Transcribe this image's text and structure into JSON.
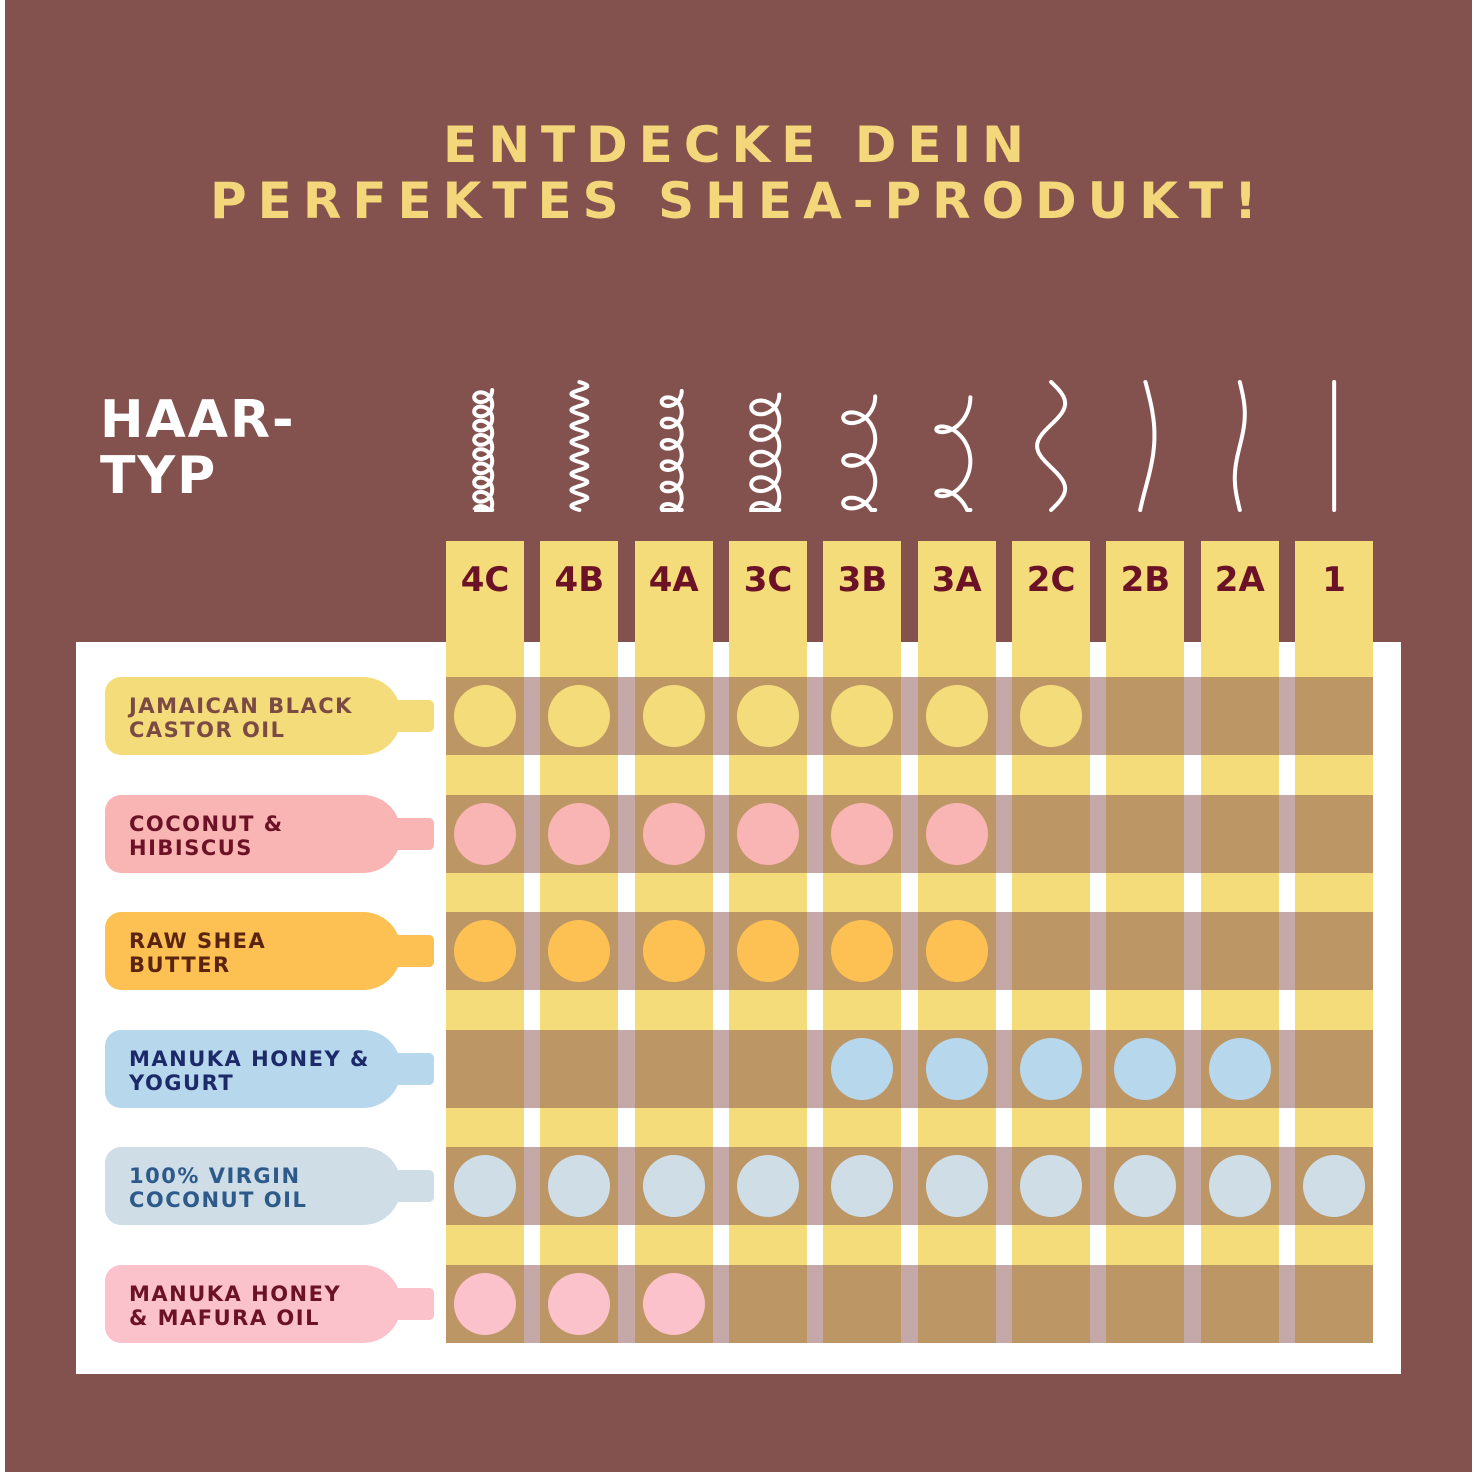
{
  "title": {
    "line1": "ENTDECKE DEIN",
    "line2": "PERFEKTES SHEA-PRODUKT!"
  },
  "hair_label": {
    "line1": "HAAR-",
    "line2": "TYP"
  },
  "colors": {
    "background": "#84524e",
    "title": "#f3d77a",
    "column": "#f5dc7a",
    "band": "#bc9664"
  },
  "hair_types": [
    {
      "label": "4C",
      "icon": "tight-coil-icon"
    },
    {
      "label": "4B",
      "icon": "zigzag-coil-icon"
    },
    {
      "label": "4A",
      "icon": "coil-icon"
    },
    {
      "label": "3C",
      "icon": "corkscrew-curl-icon"
    },
    {
      "label": "3B",
      "icon": "curl-icon"
    },
    {
      "label": "3A",
      "icon": "loose-curl-icon"
    },
    {
      "label": "2C",
      "icon": "strong-wave-icon"
    },
    {
      "label": "2B",
      "icon": "wave-icon"
    },
    {
      "label": "2A",
      "icon": "light-wave-icon"
    },
    {
      "label": "1",
      "icon": "straight-hair-icon"
    }
  ],
  "products": [
    {
      "name": "JAMAICAN BLACK\nCASTOR OIL",
      "color": "#f5dc7a",
      "text_color": "#7a4b44",
      "suitable": [
        "4C",
        "4B",
        "4A",
        "3C",
        "3B",
        "3A",
        "2C"
      ]
    },
    {
      "name": "COCONUT &\nHIBISCUS",
      "color": "#f9b4b4",
      "text_color": "#6b1226",
      "suitable": [
        "4C",
        "4B",
        "4A",
        "3C",
        "3B",
        "3A"
      ]
    },
    {
      "name": "RAW SHEA\nBUTTER",
      "color": "#fdc153",
      "text_color": "#5a2410",
      "suitable": [
        "4C",
        "4B",
        "4A",
        "3C",
        "3B",
        "3A"
      ]
    },
    {
      "name": "MANUKA HONEY &\nYOGURT",
      "color": "#b6d7ec",
      "text_color": "#1d2a6a",
      "suitable": [
        "3B",
        "3A",
        "2C",
        "2B",
        "2A"
      ]
    },
    {
      "name": "100% VIRGIN\nCOCONUT OIL",
      "color": "#cfdde7",
      "text_color": "#2d5a8a",
      "suitable": [
        "4C",
        "4B",
        "4A",
        "3C",
        "3B",
        "3A",
        "2C",
        "2B",
        "2A",
        "1"
      ]
    },
    {
      "name": "MANUKA HONEY\n& MAFURA OIL",
      "color": "#fbc2cb",
      "text_color": "#6b1226",
      "suitable": [
        "4C",
        "4B",
        "4A"
      ]
    }
  ]
}
